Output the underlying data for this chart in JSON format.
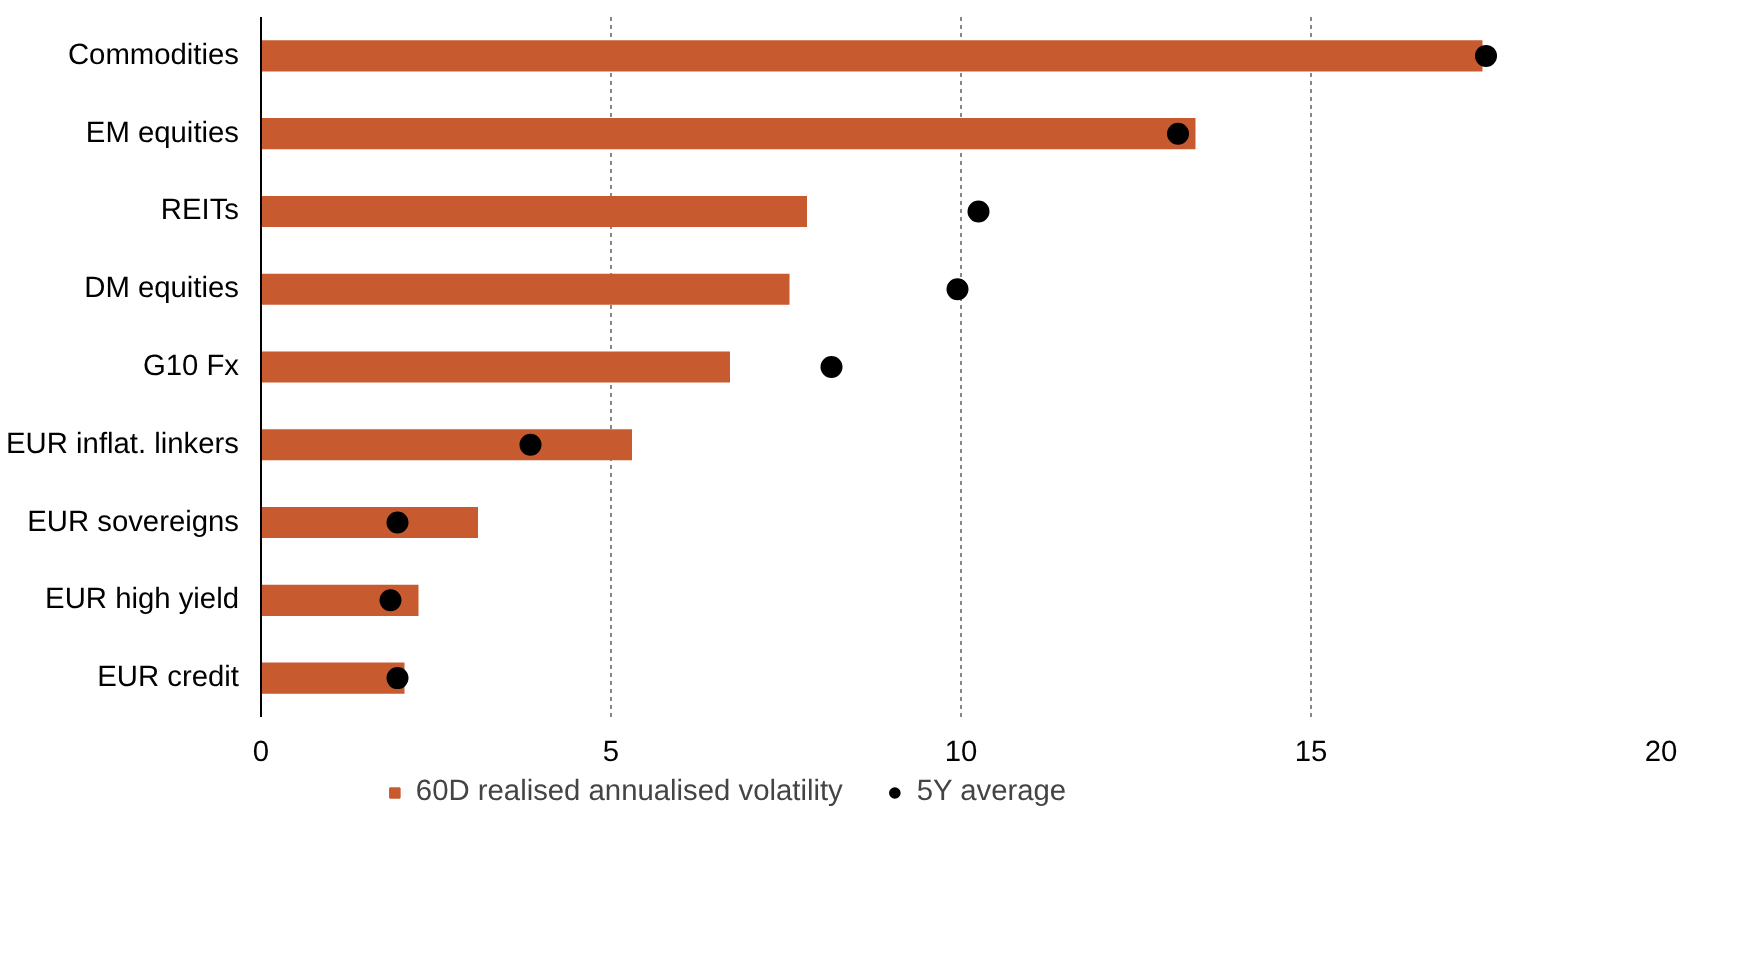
{
  "chart_data": {
    "type": "bar",
    "orientation": "horizontal",
    "categories": [
      "Commodities",
      "EM equities",
      "REITs",
      "DM equities",
      "G10 Fx",
      "EUR inflat. linkers",
      "EUR sovereigns",
      "EUR high yield",
      "EUR credit"
    ],
    "series": [
      {
        "name": "60D realised annualised volatility",
        "color": "#c85a30",
        "values": [
          17.45,
          13.35,
          7.8,
          7.55,
          6.7,
          5.3,
          3.1,
          2.25,
          2.05
        ]
      },
      {
        "name": "5Y average",
        "type": "scatter",
        "color": "#000000",
        "x": [
          "Commodities",
          "EM equities",
          "REITs",
          "DM equities",
          "G10 Fx",
          "EUR inflat. linkers",
          "EUR sovereigns",
          "EUR high yield",
          "EUR credit"
        ],
        "values": [
          17.5,
          13.1,
          10.25,
          9.95,
          8.15,
          3.85,
          1.95,
          1.85,
          1.95
        ]
      }
    ],
    "xlim": [
      0,
      20
    ],
    "xticks": [
      0,
      5,
      10,
      15,
      20
    ],
    "grid": "x",
    "legend": "bottom"
  }
}
